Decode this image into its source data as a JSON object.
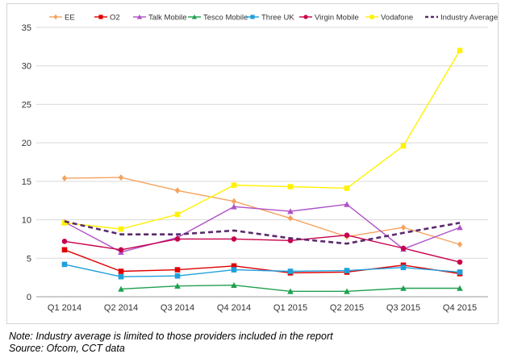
{
  "chart_data": {
    "type": "line",
    "title": "",
    "xlabel": "",
    "ylabel": "",
    "categories": [
      "Q1 2014",
      "Q2 2014",
      "Q3 2014",
      "Q4 2014",
      "Q1 2015",
      "Q2 2015",
      "Q3 2015",
      "Q4 2015"
    ],
    "ylim": [
      0,
      35
    ],
    "yticks": [
      "0",
      "5",
      "10",
      "15",
      "20",
      "25",
      "30",
      "35"
    ],
    "grid": true,
    "legend_position": "top",
    "series": [
      {
        "name": "EE",
        "color": "#f4a460",
        "marker": "diamond",
        "dashed": false,
        "values": [
          15.4,
          15.5,
          13.8,
          12.4,
          10.2,
          7.8,
          9.0,
          6.8
        ]
      },
      {
        "name": "O2",
        "color": "#e00000",
        "marker": "square",
        "dashed": false,
        "values": [
          6.1,
          3.3,
          3.5,
          4.0,
          3.1,
          3.2,
          4.1,
          3.0
        ]
      },
      {
        "name": "Talk Mobile",
        "color": "#b050c8",
        "marker": "triangle",
        "dashed": false,
        "values": [
          9.7,
          5.8,
          7.7,
          11.7,
          11.1,
          12.0,
          6.2,
          9.0
        ]
      },
      {
        "name": "Tesco Mobile",
        "color": "#1fa050",
        "marker": "triangle",
        "dashed": false,
        "values": [
          null,
          1.0,
          1.4,
          1.5,
          0.7,
          0.7,
          1.1,
          1.1
        ]
      },
      {
        "name": "Three UK",
        "color": "#1ea0dc",
        "marker": "square",
        "dashed": false,
        "values": [
          4.2,
          2.6,
          2.7,
          3.5,
          3.3,
          3.4,
          3.8,
          3.2
        ]
      },
      {
        "name": "Virgin Mobile",
        "color": "#c8004b",
        "marker": "circle",
        "dashed": false,
        "values": [
          7.2,
          6.1,
          7.5,
          7.5,
          7.3,
          8.0,
          6.3,
          4.5
        ]
      },
      {
        "name": "Vodafone",
        "color": "#fff200",
        "marker": "square",
        "dashed": false,
        "values": [
          9.6,
          8.8,
          10.7,
          14.5,
          14.3,
          14.1,
          19.6,
          32.0
        ]
      },
      {
        "name": "Industry Average",
        "color": "#5b2a6e",
        "marker": "none",
        "dashed": true,
        "values": [
          9.8,
          8.1,
          8.1,
          8.6,
          7.6,
          6.9,
          8.3,
          9.6
        ]
      }
    ]
  },
  "footnotes": {
    "note": "Note: Industry average is limited to those providers included in the report",
    "source": "Source: Ofcom, CCT data"
  }
}
